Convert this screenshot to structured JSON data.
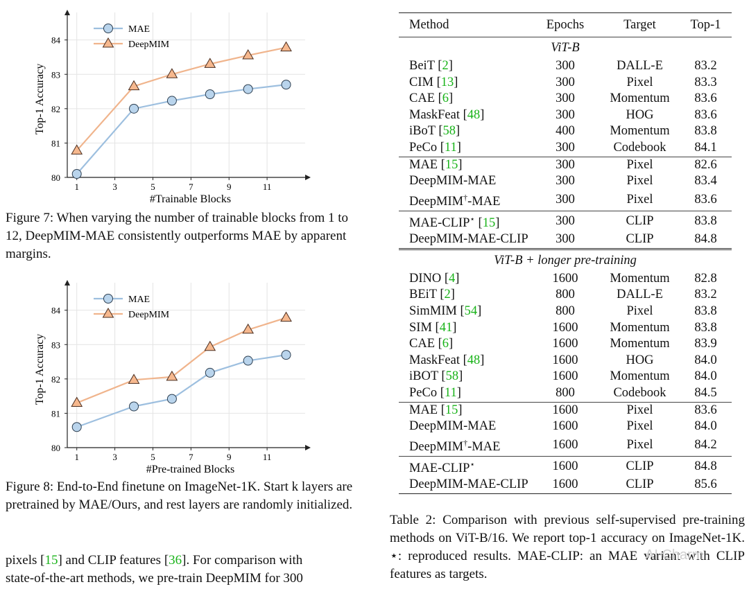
{
  "fig7": {
    "caption_prefix": "Figure 7:",
    "caption_text": " When varying the number of trainable blocks from 1 to 12, DeepMIM-MAE consistently outperforms MAE by apparent margins."
  },
  "fig8": {
    "caption_prefix": "Figure 8:",
    "caption_text": " End-to-End finetune on ImageNet-1K. Start k layers are pretrained by MAE/Ours, and rest layers are randomly initialized."
  },
  "chart_data": [
    {
      "type": "line",
      "xlabel": "#Trainable Blocks",
      "ylabel": "Top-1 Accuracy",
      "x_ticks": [
        1,
        3,
        5,
        7,
        9,
        11
      ],
      "y_ticks": [
        80,
        81,
        82,
        83,
        84
      ],
      "xlim": [
        0.5,
        13
      ],
      "ylim": [
        80,
        84.8
      ],
      "legend_position": "top-left",
      "series": [
        {
          "name": "MAE",
          "marker": "circle",
          "color": "#9dbfdf",
          "x": [
            1,
            4,
            6,
            8,
            10,
            12
          ],
          "y": [
            80.1,
            82.0,
            82.23,
            82.42,
            82.57,
            82.7
          ]
        },
        {
          "name": "DeepMIM",
          "marker": "triangle",
          "color": "#f0b48c",
          "x": [
            1,
            4,
            6,
            8,
            10,
            12
          ],
          "y": [
            80.78,
            82.65,
            83.0,
            83.3,
            83.55,
            83.78
          ]
        }
      ]
    },
    {
      "type": "line",
      "xlabel": "#Pre-trained Blocks",
      "ylabel": "Top-1 Accuracy",
      "x_ticks": [
        1,
        3,
        5,
        7,
        9,
        11
      ],
      "y_ticks": [
        80,
        81,
        82,
        83,
        84
      ],
      "xlim": [
        0.5,
        13
      ],
      "ylim": [
        80,
        84.8
      ],
      "legend_position": "top-left",
      "series": [
        {
          "name": "MAE",
          "marker": "circle",
          "color": "#9dbfdf",
          "x": [
            1,
            4,
            6,
            8,
            10,
            12
          ],
          "y": [
            80.6,
            81.2,
            81.42,
            82.18,
            82.53,
            82.7
          ]
        },
        {
          "name": "DeepMIM",
          "marker": "triangle",
          "color": "#f0b48c",
          "x": [
            1,
            4,
            6,
            8,
            10,
            12
          ],
          "y": [
            81.3,
            81.97,
            82.06,
            82.93,
            83.43,
            83.78
          ]
        }
      ]
    }
  ],
  "body_text": {
    "before_15": "pixels [",
    "ref_15": "15",
    "mid": "] and CLIP features [",
    "ref_36": "36",
    "after": "]. For comparison with",
    "line2": "state-of-the-art methods, we pre-train DeepMIM for 300"
  },
  "table": {
    "headers": [
      "Method",
      "Epochs",
      "Target",
      "Top-1"
    ],
    "section1": "ViT-B",
    "section2": "ViT-B + longer pre-training",
    "groups1": [
      [
        {
          "m": "BeiT [",
          "ref": "2",
          "e": "300",
          "t": "DALL-E",
          "a": "83.2"
        },
        {
          "m": "CIM [",
          "ref": "13",
          "e": "300",
          "t": "Pixel",
          "a": "83.3"
        },
        {
          "m": "CAE [",
          "ref": "6",
          "e": "300",
          "t": "Momentum",
          "a": "83.6"
        },
        {
          "m": "MaskFeat [",
          "ref": "48",
          "e": "300",
          "t": "HOG",
          "a": "83.6"
        },
        {
          "m": "iBoT [",
          "ref": "58",
          "e": "400",
          "t": "Momentum",
          "a": "83.8"
        },
        {
          "m": "PeCo [",
          "ref": "11",
          "e": "300",
          "t": "Codebook",
          "a": "84.1"
        }
      ],
      [
        {
          "m": "MAE [",
          "ref": "15",
          "e": "300",
          "t": "Pixel",
          "a": "82.6"
        },
        {
          "m": "DeepMIM-MAE",
          "e": "300",
          "t": "Pixel",
          "a": "83.4"
        },
        {
          "m": "DeepMIM",
          "sup": "†",
          "m2": "-MAE",
          "e": "300",
          "t": "Pixel",
          "a": "83.6"
        }
      ],
      [
        {
          "m": "MAE-CLIP",
          "sup": "⋆",
          "m2": " [",
          "ref": "15",
          "e": "300",
          "t": "CLIP",
          "a": "83.8"
        },
        {
          "m": "DeepMIM-MAE-CLIP",
          "e": "300",
          "t": "CLIP",
          "a": "84.8"
        }
      ]
    ],
    "groups2": [
      [
        {
          "m": "DINO [",
          "ref": "4",
          "e": "1600",
          "t": "Momentum",
          "a": "82.8"
        },
        {
          "m": "BEiT [",
          "ref": "2",
          "e": "800",
          "t": "DALL-E",
          "a": "83.2"
        },
        {
          "m": "SimMIM [",
          "ref": "54",
          "e": "800",
          "t": "Pixel",
          "a": "83.8"
        },
        {
          "m": "SIM [",
          "ref": "41",
          "e": "1600",
          "t": "Momentum",
          "a": "83.8"
        },
        {
          "m": "CAE [",
          "ref": "6",
          "e": "1600",
          "t": "Momentum",
          "a": "83.9"
        },
        {
          "m": "MaskFeat [",
          "ref": "48",
          "e": "1600",
          "t": "HOG",
          "a": "84.0"
        },
        {
          "m": "iBOT [",
          "ref": "58",
          "e": "1600",
          "t": "Momentum",
          "a": "84.0"
        },
        {
          "m": "PeCo [",
          "ref": "11",
          "e": "800",
          "t": "Codebook",
          "a": "84.5"
        }
      ],
      [
        {
          "m": "MAE [",
          "ref": "15",
          "e": "1600",
          "t": "Pixel",
          "a": "83.6"
        },
        {
          "m": "DeepMIM-MAE",
          "e": "1600",
          "t": "Pixel",
          "a": "84.0"
        },
        {
          "m": "DeepMIM",
          "sup": "†",
          "m2": "-MAE",
          "e": "1600",
          "t": "Pixel",
          "a": "84.2"
        }
      ],
      [
        {
          "m": "MAE-CLIP",
          "sup": "⋆",
          "e": "1600",
          "t": "CLIP",
          "a": "84.8"
        },
        {
          "m": "DeepMIM-MAE-CLIP",
          "e": "1600",
          "t": "CLIP",
          "a": "85.6"
        }
      ]
    ],
    "caption": "Table 2: Comparison with previous self-supervised pre-training methods on ViT-B/16. We report top-1 accuracy on ImageNet-1K. ⋆: reproduced results. MAE-CLIP: an MAE variant with CLIP features as targets."
  },
  "watermark": "AI Charm"
}
